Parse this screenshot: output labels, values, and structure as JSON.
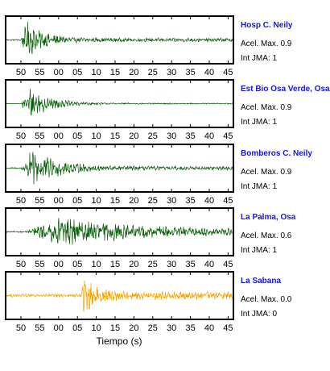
{
  "chart_data": {
    "type": "line",
    "xlabel": "Tiempo (s)",
    "tick_labels": [
      "50",
      "55",
      "00",
      "05",
      "10",
      "15",
      "20",
      "25",
      "30",
      "35",
      "40",
      "45"
    ],
    "panels": [
      {
        "station": "Hosp C. Neily",
        "accel_label": "Acel. Max. 0.9",
        "intensity_label": "Int JMA: 1",
        "color": "#0a5f0a",
        "onset_tick": 0.0,
        "peak_tick": 0.3,
        "decay": 0.22,
        "amplitude": 1.0,
        "tail_amplitude": 0.1
      },
      {
        "station": "Est Bio Osa Verde, Osa",
        "accel_label": "Acel. Max. 0.9",
        "intensity_label": "Int JMA: 1",
        "color": "#0a5f0a",
        "onset_tick": 0.0,
        "peak_tick": 0.4,
        "decay": 0.28,
        "amplitude": 0.9,
        "tail_amplitude": 0.03
      },
      {
        "station": "Bomberos C. Neily",
        "accel_label": "Acel. Max. 0.9",
        "intensity_label": "Int JMA: 1",
        "color": "#0a5f0a",
        "onset_tick": 0.0,
        "peak_tick": 0.6,
        "decay": 0.35,
        "amplitude": 0.95,
        "tail_amplitude": 0.1
      },
      {
        "station": "La Palma, Osa",
        "accel_label": "Acel. Max. 0.6",
        "intensity_label": "Int JMA: 1",
        "color": "#0a5f0a",
        "onset_tick": 0.2,
        "peak_tick": 2.2,
        "decay": 1.2,
        "amplitude": 0.75,
        "tail_amplitude": 0.08
      },
      {
        "station": "La Sabana",
        "accel_label": "Acel. Max. 0.0",
        "intensity_label": "Int JMA: 0",
        "color": "#f5a300",
        "onset_tick": 3.2,
        "peak_tick": 3.35,
        "decay": 0.15,
        "amplitude": 1.0,
        "tail_amplitude": 0.22
      }
    ]
  }
}
